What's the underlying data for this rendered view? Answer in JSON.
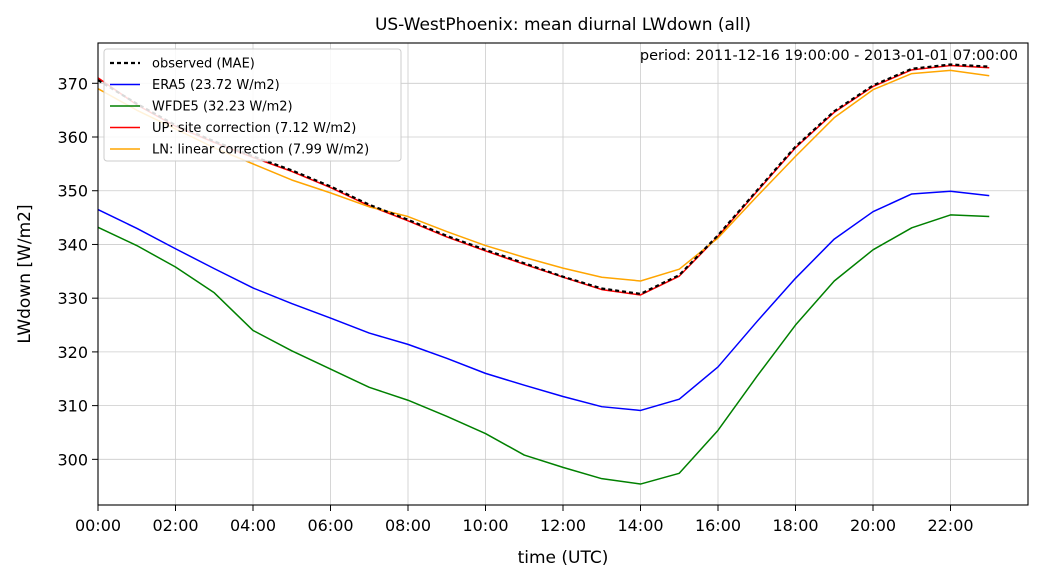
{
  "chart_data": {
    "type": "line",
    "title": "US-WestPhoenix: mean diurnal LWdown (all)",
    "xlabel": "time (UTC)",
    "ylabel": "LWdown [W/m2]",
    "annotation": "period: 2011-12-16 19:00:00 - 2013-01-01 07:00:00",
    "xlim": [
      0,
      24
    ],
    "ylim": [
      291.5,
      377.5
    ],
    "x_ticks": [
      0,
      2,
      4,
      6,
      8,
      10,
      12,
      14,
      16,
      18,
      20,
      22
    ],
    "x_tick_labels": [
      "00:00",
      "02:00",
      "04:00",
      "06:00",
      "08:00",
      "10:00",
      "12:00",
      "14:00",
      "16:00",
      "18:00",
      "20:00",
      "22:00"
    ],
    "y_ticks": [
      300,
      310,
      320,
      330,
      340,
      350,
      360,
      370
    ],
    "y_tick_labels": [
      "300",
      "310",
      "320",
      "330",
      "340",
      "350",
      "360",
      "370"
    ],
    "grid": true,
    "legend_position": "top-left",
    "x": [
      0,
      1,
      2,
      3,
      4,
      5,
      6,
      7,
      8,
      9,
      10,
      11,
      12,
      13,
      14,
      15,
      16,
      17,
      18,
      19,
      20,
      21,
      22,
      23
    ],
    "series": [
      {
        "name": "UP: site correction (7.12 W/m2)",
        "color": "#ff0000",
        "style": "solid",
        "values": [
          371.0,
          366.0,
          362.0,
          359.0,
          356.2,
          353.6,
          350.6,
          347.2,
          344.4,
          341.4,
          338.8,
          336.3,
          333.9,
          331.6,
          330.6,
          334.1,
          341.5,
          349.8,
          358.0,
          364.6,
          369.4,
          372.5,
          373.3,
          372.9
        ]
      },
      {
        "name": "LN: linear correction (7.99 W/m2)",
        "color": "#ffa500",
        "style": "solid",
        "values": [
          369.0,
          365.0,
          361.5,
          358.0,
          355.0,
          352.0,
          349.6,
          347.0,
          345.2,
          342.4,
          339.8,
          337.6,
          335.6,
          333.9,
          333.2,
          335.4,
          341.2,
          348.9,
          356.4,
          363.6,
          368.8,
          371.8,
          372.4,
          371.4
        ]
      },
      {
        "name": "ERA5 (23.72 W/m2)",
        "color": "#0000ff",
        "style": "solid",
        "values": [
          346.5,
          343.0,
          339.2,
          335.5,
          331.9,
          329.0,
          326.3,
          323.5,
          321.4,
          318.8,
          316.0,
          313.8,
          311.7,
          309.8,
          309.1,
          311.2,
          317.2,
          325.6,
          333.7,
          341.0,
          346.1,
          349.4,
          349.9,
          349.1
        ]
      },
      {
        "name": "WFDE5 (32.23 W/m2)",
        "color": "#008000",
        "style": "solid",
        "values": [
          343.2,
          339.8,
          335.8,
          331.0,
          324.0,
          320.2,
          316.8,
          313.4,
          311.0,
          308.0,
          304.8,
          300.8,
          298.5,
          296.4,
          295.4,
          297.4,
          305.4,
          315.4,
          325.0,
          333.2,
          339.0,
          343.1,
          345.5,
          345.2
        ]
      },
      {
        "name": "observed (MAE)",
        "color": "#000000",
        "style": "dashed",
        "values": [
          370.6,
          366.2,
          362.2,
          359.2,
          356.4,
          353.8,
          350.8,
          347.4,
          344.6,
          341.6,
          339.0,
          336.5,
          334.0,
          331.8,
          330.8,
          334.3,
          341.7,
          350.0,
          358.2,
          364.8,
          369.6,
          372.7,
          373.5,
          373.1
        ]
      }
    ],
    "legend_order": [
      "observed (MAE)",
      "ERA5 (23.72 W/m2)",
      "WFDE5 (32.23 W/m2)",
      "UP: site correction (7.12 W/m2)",
      "LN: linear correction (7.99 W/m2)"
    ]
  }
}
